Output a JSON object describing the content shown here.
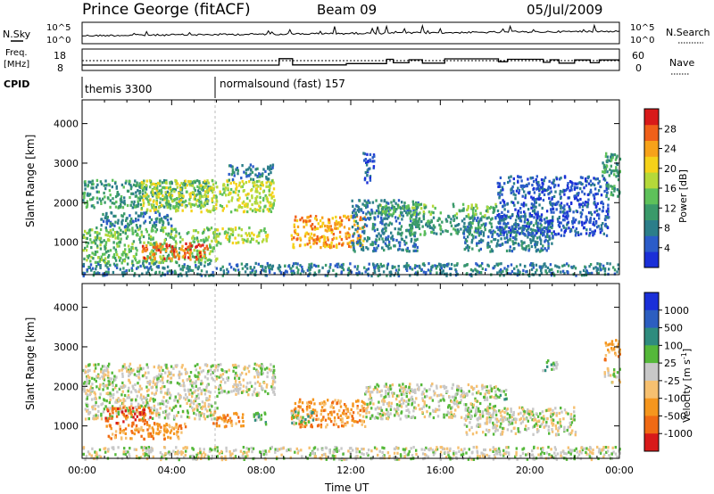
{
  "header": {
    "station": "Prince George (fitACF)",
    "beam": "Beam 09",
    "date": "05/Jul/2009"
  },
  "noise_panel": {
    "left_label": "N.Sky",
    "right_label": "N.Search",
    "left_ticks": [
      "10^5",
      "10^0"
    ],
    "right_ticks": [
      "10^5",
      "10^0"
    ]
  },
  "freq_panel": {
    "left_label_line1": "Freq.",
    "left_label_line2": "[MHz]",
    "right_label": "Nave",
    "left_ticks": [
      "18",
      "8"
    ],
    "right_ticks": [
      "60",
      "0"
    ],
    "freq_steps": [
      [
        0,
        10.5
      ],
      [
        8.8,
        10.5
      ],
      [
        8.8,
        13.5
      ],
      [
        9.4,
        13.5
      ],
      [
        9.4,
        10.6
      ],
      [
        11.8,
        10.6
      ],
      [
        11.8,
        11.2
      ],
      [
        13.6,
        11.2
      ],
      [
        13.6,
        13.2
      ],
      [
        13.9,
        13.2
      ],
      [
        13.9,
        11.6
      ],
      [
        14.6,
        11.6
      ],
      [
        14.6,
        13.0
      ],
      [
        15.2,
        13.0
      ],
      [
        15.2,
        11.4
      ],
      [
        16.2,
        11.4
      ],
      [
        16.2,
        13.4
      ],
      [
        18.6,
        13.4
      ],
      [
        18.6,
        12.1
      ],
      [
        19.0,
        12.1
      ],
      [
        19.0,
        13.2
      ],
      [
        20.6,
        13.2
      ],
      [
        20.6,
        11.8
      ],
      [
        20.9,
        11.8
      ],
      [
        20.9,
        13.0
      ],
      [
        21.3,
        13.0
      ],
      [
        21.3,
        11.4
      ],
      [
        22.0,
        11.4
      ],
      [
        22.0,
        12.9
      ],
      [
        22.7,
        12.9
      ],
      [
        22.7,
        11.6
      ],
      [
        23.1,
        11.6
      ],
      [
        23.1,
        12.9
      ],
      [
        24,
        12.9
      ]
    ]
  },
  "cpid": {
    "label": "CPID",
    "modes": [
      {
        "start": 0,
        "text": "themis 3300"
      },
      {
        "start": 6,
        "text": "normalsound (fast) 157"
      }
    ]
  },
  "chart_data": [
    {
      "type": "heatmap",
      "panel": "power",
      "ylabel": "Slant Range [km]",
      "yticks": [
        1000,
        2000,
        3000,
        4000
      ],
      "ylim": [
        180,
        4600
      ],
      "xlim": [
        0,
        24
      ],
      "colorbar": {
        "label": "Power [dB]",
        "ticks": [
          "4",
          "8",
          "12",
          "16",
          "20",
          "24",
          "28"
        ],
        "colors": [
          "#1a2fd8",
          "#2b5cc9",
          "#2c7e8a",
          "#3a9a6a",
          "#5ec15a",
          "#b5d93a",
          "#f5d21a",
          "#f7a21a",
          "#f0601a",
          "#d81a1a"
        ]
      },
      "regions": [
        {
          "t0": 0.0,
          "t1": 5.8,
          "r0": 1900,
          "r1": 2600,
          "level": 3
        },
        {
          "t0": 2.6,
          "t1": 8.6,
          "r0": 1800,
          "r1": 2600,
          "level": 5
        },
        {
          "t0": 0.0,
          "t1": 6.0,
          "r0": 500,
          "r1": 1400,
          "level": 4
        },
        {
          "t0": 2.6,
          "t1": 5.6,
          "r0": 600,
          "r1": 1000,
          "level": 8
        },
        {
          "t0": 0.8,
          "t1": 4.0,
          "r0": 1400,
          "r1": 1800,
          "level": 2
        },
        {
          "t0": 5.8,
          "t1": 8.3,
          "r0": 1000,
          "r1": 1400,
          "level": 5
        },
        {
          "t0": 9.3,
          "t1": 12.6,
          "r0": 900,
          "r1": 1700,
          "level": 7
        },
        {
          "t0": 12.0,
          "t1": 15.0,
          "r0": 800,
          "r1": 2100,
          "level": 2
        },
        {
          "t0": 13.2,
          "t1": 16.0,
          "r0": 1700,
          "r1": 2000,
          "level": 4
        },
        {
          "t0": 14.5,
          "t1": 18.0,
          "r0": 1200,
          "r1": 1700,
          "level": 3
        },
        {
          "t0": 16.5,
          "t1": 18.5,
          "r0": 1700,
          "r1": 2000,
          "level": 4
        },
        {
          "t0": 17.0,
          "t1": 21.0,
          "r0": 800,
          "r1": 1700,
          "level": 2
        },
        {
          "t0": 18.5,
          "t1": 23.5,
          "r0": 1200,
          "r1": 2700,
          "level": 1
        },
        {
          "t0": 23.2,
          "t1": 24.0,
          "r0": 2100,
          "r1": 3300,
          "level": 3
        },
        {
          "t0": 0.0,
          "t1": 24.0,
          "r0": 180,
          "r1": 500,
          "level": 2
        },
        {
          "t0": 12.5,
          "t1": 13.0,
          "r0": 2500,
          "r1": 3300,
          "level": 1
        },
        {
          "t0": 6.5,
          "t1": 8.5,
          "r0": 2600,
          "r1": 3000,
          "level": 2
        }
      ]
    },
    {
      "type": "heatmap",
      "panel": "velocity",
      "ylabel": "Slant Range [km]",
      "xlabel": "Time UT",
      "xticks": [
        "00:00",
        "04:00",
        "08:00",
        "12:00",
        "16:00",
        "20:00",
        "00:00"
      ],
      "yticks": [
        1000,
        2000,
        3000,
        4000
      ],
      "ylim": [
        180,
        4600
      ],
      "xlim": [
        0,
        24
      ],
      "colorbar": {
        "label": "Velocity [m s-1]",
        "ticks": [
          "1000",
          "500",
          "100",
          "25",
          "-25",
          "-100",
          "-500",
          "-1000"
        ],
        "colors": [
          "#1a2fd8",
          "#2c5ec0",
          "#2f8c7e",
          "#55b83a",
          "#c8c8c8",
          "#f6c070",
          "#f5961e",
          "#f06a14",
          "#d81a1a"
        ]
      },
      "regions": [
        {
          "t0": 0.0,
          "t1": 8.6,
          "r0": 1800,
          "r1": 2600,
          "level": 4
        },
        {
          "t0": 0.0,
          "t1": 6.0,
          "r0": 1200,
          "r1": 1800,
          "level": 4
        },
        {
          "t0": 1.0,
          "t1": 4.6,
          "r0": 700,
          "r1": 1100,
          "level": 6
        },
        {
          "t0": 1.0,
          "t1": 3.2,
          "r0": 1100,
          "r1": 1500,
          "level": 7
        },
        {
          "t0": 5.8,
          "t1": 7.2,
          "r0": 1000,
          "r1": 1400,
          "level": 6
        },
        {
          "t0": 7.6,
          "t1": 8.2,
          "r0": 1000,
          "r1": 1400,
          "level": 3
        },
        {
          "t0": 9.3,
          "t1": 12.6,
          "r0": 1000,
          "r1": 1700,
          "level": 6
        },
        {
          "t0": 9.3,
          "t1": 10.3,
          "r0": 1100,
          "r1": 1400,
          "level": 3
        },
        {
          "t0": 12.6,
          "t1": 18.5,
          "r0": 1200,
          "r1": 2100,
          "level": 4
        },
        {
          "t0": 17.0,
          "t1": 22.0,
          "r0": 800,
          "r1": 1500,
          "level": 4
        },
        {
          "t0": 18.4,
          "t1": 19.0,
          "r0": 1700,
          "r1": 2000,
          "level": 3
        },
        {
          "t0": 20.5,
          "t1": 21.2,
          "r0": 2400,
          "r1": 2700,
          "level": 3
        },
        {
          "t0": 23.3,
          "t1": 24.0,
          "r0": 2700,
          "r1": 3200,
          "level": 6
        },
        {
          "t0": 23.3,
          "t1": 24.0,
          "r0": 2100,
          "r1": 2500,
          "level": 4
        },
        {
          "t0": 0.0,
          "t1": 24.0,
          "r0": 180,
          "r1": 500,
          "level": 4
        }
      ]
    }
  ]
}
